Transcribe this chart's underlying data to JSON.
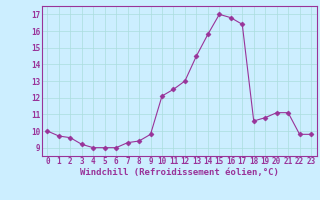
{
  "x": [
    0,
    1,
    2,
    3,
    4,
    5,
    6,
    7,
    8,
    9,
    10,
    11,
    12,
    13,
    14,
    15,
    16,
    17,
    18,
    19,
    20,
    21,
    22,
    23
  ],
  "y": [
    10.0,
    9.7,
    9.6,
    9.2,
    9.0,
    9.0,
    9.0,
    9.3,
    9.4,
    9.8,
    12.1,
    12.5,
    13.0,
    14.5,
    15.8,
    17.0,
    16.8,
    16.4,
    10.6,
    10.8,
    11.1,
    11.1,
    9.8,
    9.8
  ],
  "line_color": "#993399",
  "marker": "D",
  "markersize": 2.5,
  "linewidth": 0.8,
  "background_color": "#cceeff",
  "grid_color": "#aadddd",
  "xlabel": "Windchill (Refroidissement éolien,°C)",
  "xlabel_fontsize": 6.5,
  "tick_fontsize": 5.5,
  "xlim": [
    -0.5,
    23.5
  ],
  "ylim": [
    8.5,
    17.5
  ],
  "yticks": [
    9,
    10,
    11,
    12,
    13,
    14,
    15,
    16,
    17
  ],
  "xticks": [
    0,
    1,
    2,
    3,
    4,
    5,
    6,
    7,
    8,
    9,
    10,
    11,
    12,
    13,
    14,
    15,
    16,
    17,
    18,
    19,
    20,
    21,
    22,
    23
  ],
  "spine_color": "#993399",
  "tick_color": "#993399",
  "label_color": "#993399"
}
